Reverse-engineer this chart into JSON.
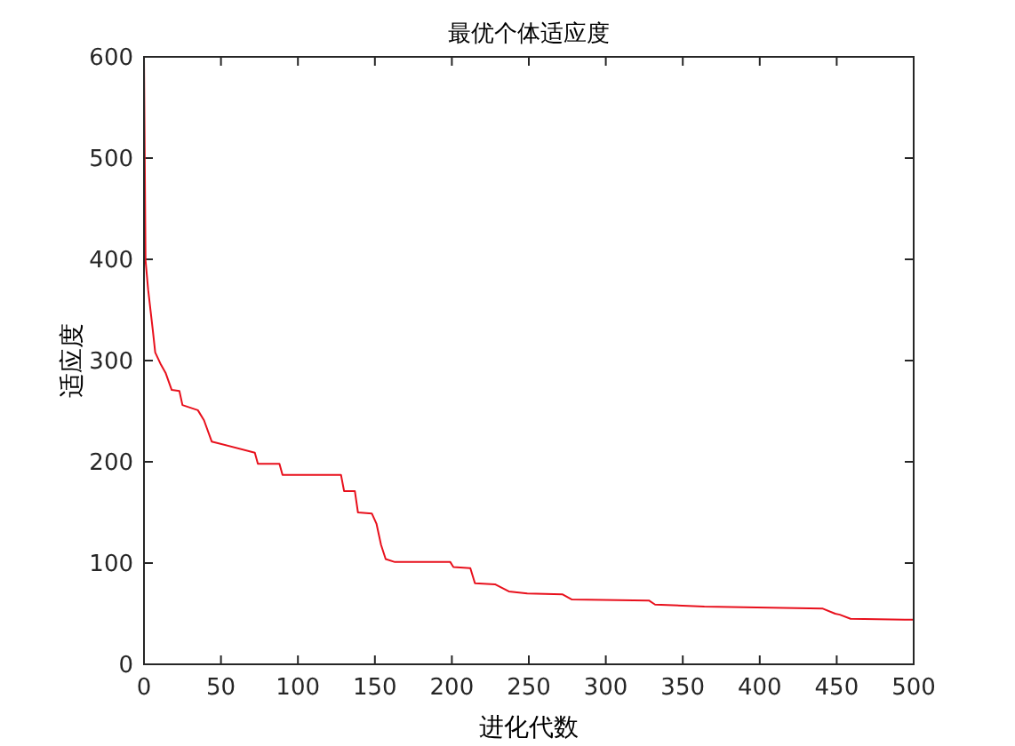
{
  "chart_data": {
    "type": "line",
    "title": "最优个体适应度",
    "xlabel": "进化代数",
    "ylabel": "适应度",
    "xlim": [
      0,
      500
    ],
    "ylim": [
      0,
      600
    ],
    "xticks": [
      0,
      50,
      100,
      150,
      200,
      250,
      300,
      350,
      400,
      450,
      500
    ],
    "yticks": [
      0,
      100,
      200,
      300,
      400,
      500,
      600
    ],
    "grid": false,
    "marker": "none",
    "line_style": "solid",
    "series": [
      {
        "color": "#e8101c",
        "x": [
          0,
          1,
          2.7,
          5.8,
          7.3,
          11,
          14,
          18,
          23,
          25,
          35,
          39,
          44,
          72,
          74,
          88,
          90,
          128,
          130,
          137,
          139,
          148,
          151,
          154,
          157,
          163,
          199,
          201,
          212,
          215,
          228,
          237,
          249,
          272,
          278,
          328,
          332,
          364,
          441,
          449,
          452,
          459,
          500
        ],
        "values": [
          600,
          399,
          370,
          329,
          308,
          296,
          288,
          271,
          270,
          256,
          251,
          241,
          220,
          209,
          198,
          198,
          187,
          187,
          171,
          171,
          150,
          149,
          139,
          118,
          104,
          101,
          101,
          96,
          95,
          80,
          79,
          72,
          70,
          69,
          64,
          63,
          59,
          57,
          55,
          50,
          49,
          45,
          44
        ]
      }
    ]
  }
}
